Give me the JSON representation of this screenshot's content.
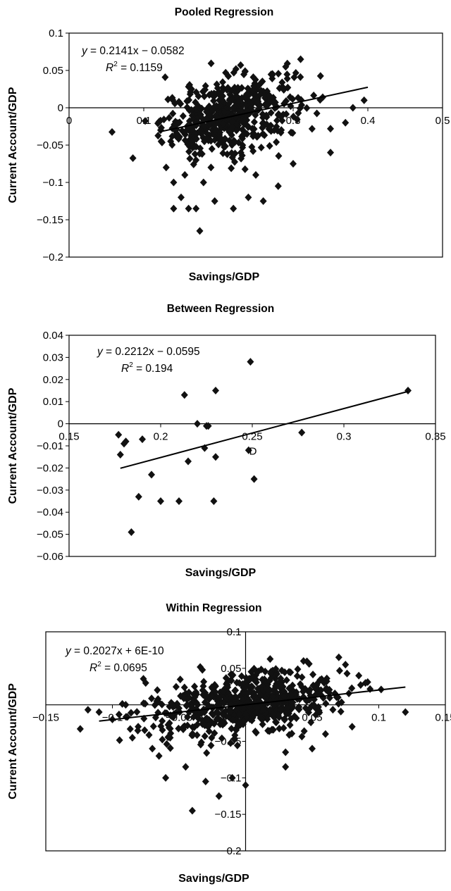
{
  "chart_data": [
    {
      "type": "scatter",
      "title": "Pooled Regression",
      "xlabel": "Savings/GDP",
      "ylabel": "Current Account/GDP",
      "xlim": [
        0,
        0.5
      ],
      "ylim": [
        -0.2,
        0.1
      ],
      "xticks": [
        "0",
        "0.1",
        "0.2",
        "0.3",
        "0.4",
        "0.5"
      ],
      "yticks": [
        "0.1",
        "0.05",
        "0",
        "−0.05",
        "−0.1",
        "−0.15",
        "−0.2"
      ],
      "equation_lhs": "y = 0.2141x − 0.0582",
      "r2_value": " = 0.1159",
      "trendline": {
        "slope": 0.2141,
        "intercept": -0.0582,
        "x_range": [
          0.12,
          0.4
        ]
      },
      "series": [
        {
          "cluster": {
            "x_center": 0.215,
            "x_spread": 0.045,
            "y_center": -0.01,
            "y_spread": 0.025,
            "count": 500
          },
          "x": [
            0.13,
            0.14,
            0.15,
            0.16,
            0.17,
            0.14,
            0.155,
            0.18,
            0.17,
            0.22,
            0.195,
            0.24,
            0.26,
            0.28,
            0.25,
            0.3,
            0.35,
            0.37,
            0.38,
            0.395,
            0.31,
            0.29,
            0.175,
            0.19,
            0.23
          ],
          "y": [
            -0.08,
            -0.1,
            -0.12,
            -0.135,
            -0.135,
            -0.135,
            -0.09,
            -0.1,
            -0.07,
            -0.135,
            -0.125,
            -0.12,
            -0.125,
            -0.105,
            -0.09,
            -0.075,
            -0.06,
            -0.02,
            0.0,
            0.01,
            0.065,
            0.055,
            -0.165,
            -0.08,
            -0.06
          ]
        }
      ]
    },
    {
      "type": "scatter",
      "title": "Between Regression",
      "xlabel": "Savings/GDP",
      "ylabel": "Current Account/GDP",
      "xlim": [
        0.15,
        0.35
      ],
      "ylim": [
        -0.06,
        0.04
      ],
      "xticks": [
        "0.15",
        "0.2",
        "0.25",
        "0.3",
        "0.35"
      ],
      "yticks": [
        "0.04",
        "0.03",
        "0.02",
        "0.01",
        "0",
        "−0.01",
        "−0.02",
        "−0.03",
        "−0.04",
        "−0.05",
        "−0.06"
      ],
      "equation_lhs": "y = 0.2212x − 0.0595",
      "r2_value": " = 0.194",
      "stray_label": "D",
      "trendline": {
        "slope": 0.2212,
        "intercept": -0.0595,
        "x_range": [
          0.178,
          0.335
        ]
      },
      "series": [
        {
          "x": [
            0.177,
            0.178,
            0.18,
            0.181,
            0.184,
            0.188,
            0.19,
            0.195,
            0.2,
            0.21,
            0.213,
            0.215,
            0.22,
            0.224,
            0.225,
            0.226,
            0.229,
            0.23,
            0.23,
            0.248,
            0.249,
            0.251,
            0.277,
            0.335
          ],
          "y": [
            -0.005,
            -0.014,
            -0.009,
            -0.008,
            -0.049,
            -0.033,
            -0.007,
            -0.023,
            -0.035,
            -0.035,
            0.013,
            -0.017,
            0.0,
            -0.011,
            -0.001,
            -0.001,
            -0.035,
            0.015,
            -0.015,
            -0.012,
            0.028,
            -0.025,
            -0.004,
            0.015
          ]
        }
      ]
    },
    {
      "type": "scatter",
      "title": "Within Regression",
      "xlabel": "Savings/GDP",
      "ylabel": "Current Account/GDP",
      "xlim": [
        -0.15,
        0.15
      ],
      "ylim": [
        -0.2,
        0.1
      ],
      "xticks": [
        "−0.15",
        "−0.1",
        "−0.05",
        "0",
        "0.05",
        "0.1",
        "0.15"
      ],
      "yticks": [
        "0.1",
        "0.05",
        "0",
        "−0.05",
        "−0.1",
        "−0.15",
        "−0.2"
      ],
      "equation_lhs": "y = 0.2027x + 6E-10",
      "r2_value": " = 0.0695",
      "trendline": {
        "slope": 0.2027,
        "intercept": 0.0,
        "x_range": [
          -0.11,
          0.12
        ]
      },
      "series": [
        {
          "cluster": {
            "x_center": 0.0,
            "x_spread": 0.035,
            "y_center": 0.0,
            "y_spread": 0.022,
            "count": 650
          },
          "x": [
            -0.11,
            -0.1,
            -0.085,
            -0.07,
            -0.065,
            -0.06,
            -0.045,
            -0.04,
            -0.03,
            -0.02,
            -0.01,
            0.0,
            0.03,
            0.03,
            0.05,
            0.06,
            0.07,
            0.075,
            0.085,
            0.09,
            0.12,
            -0.09,
            -0.075,
            0.08
          ],
          "y": [
            -0.01,
            -0.02,
            -0.045,
            -0.06,
            -0.07,
            -0.1,
            -0.085,
            -0.145,
            -0.105,
            -0.125,
            -0.1,
            -0.11,
            -0.085,
            -0.065,
            -0.06,
            -0.04,
            0.065,
            0.055,
            0.04,
            0.03,
            -0.01,
            0.0,
            0.03,
            -0.03
          ]
        }
      ]
    }
  ]
}
